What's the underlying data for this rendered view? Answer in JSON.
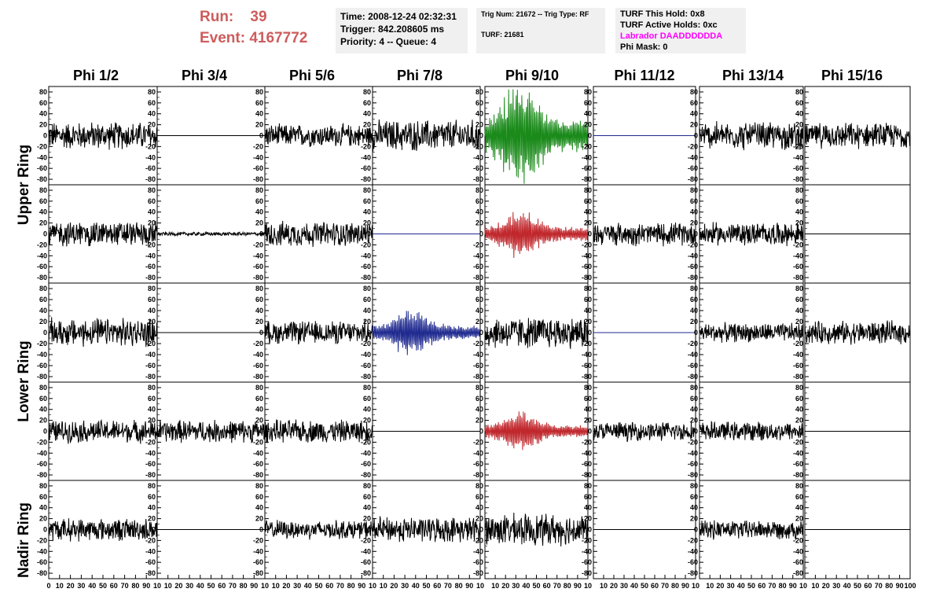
{
  "header": {
    "run_label": "Run:",
    "run_value": "39",
    "event_label": "Event:",
    "event_value": "4167772",
    "info1": {
      "time": "Time: 2008-12-24 02:32:31",
      "trigger": "Trigger: 842.208605 ms",
      "priority": "Priority: 4 -- Queue: 4"
    },
    "info2": {
      "trig": "Trig Num: 21672 -- Trig Type: RF",
      "turf": "TURF: 21681"
    },
    "info3": {
      "this_hold": "TURF This Hold: 0x8",
      "active_holds": "TURF Active Holds: 0xc",
      "labrador": "Labrador DAADDDDDDA",
      "phi_mask": "Phi Mask: 0"
    }
  },
  "phi_headers": [
    "Phi 1/2",
    "Phi 3/4",
    "Phi 5/6",
    "Phi 7/8",
    "Phi 9/10",
    "Phi 11/12",
    "Phi 13/14",
    "Phi 15/16"
  ],
  "ring_labels": [
    "Upper Ring",
    "Lower Ring",
    "Nadir Ring"
  ],
  "colors": {
    "run_text": "#cd5c5c",
    "black_trace": "#000000",
    "green_trace": "#1a8a1a",
    "red_trace": "#c0282d",
    "blue_trace": "#1f2a8f",
    "magenta_text": "#ff00ff"
  },
  "chart_data": {
    "type": "line",
    "rows": 5,
    "cols": 8,
    "y_ticks": [
      80,
      60,
      40,
      20,
      0,
      -20,
      -40,
      -60,
      -80
    ],
    "ylim": [
      -90,
      90
    ],
    "xlim": [
      0,
      100
    ],
    "x_tick_labels_first": [
      "0",
      "10",
      "20",
      "30",
      "40",
      "50",
      "60",
      "70",
      "80",
      "90",
      "10"
    ],
    "x_tick_labels_middle": [
      "10",
      "20",
      "30",
      "40",
      "50",
      "60",
      "70",
      "80",
      "90",
      "10"
    ],
    "x_tick_labels_last": [
      "10",
      "20",
      "30",
      "40",
      "50",
      "60",
      "70",
      "80",
      "90",
      "100"
    ],
    "panels": [
      [
        "noise",
        "flat",
        "noise",
        "noise",
        "pulse",
        "flat",
        "noise",
        "noise"
      ],
      [
        "noise",
        "small",
        "noise",
        "flat",
        "pulse",
        "noise",
        "noise",
        "flat"
      ],
      [
        "noise",
        "flat",
        "noise",
        "pulse",
        "noise",
        "flat",
        "noise",
        "noise"
      ],
      [
        "noise",
        "noise",
        "noise",
        "flat",
        "pulse",
        "noise",
        "noise",
        "flat"
      ],
      [
        "noise",
        "flat",
        "noise",
        "noise",
        "noise",
        "flat",
        "noise",
        "flat"
      ]
    ],
    "trace_colors": [
      [
        "black",
        "black",
        "black",
        "black",
        "green",
        "blue",
        "black",
        "black"
      ],
      [
        "black",
        "black",
        "black",
        "blue",
        "red",
        "black",
        "black",
        "black"
      ],
      [
        "black",
        "black",
        "black",
        "blue",
        "black",
        "blue",
        "black",
        "black"
      ],
      [
        "black",
        "black",
        "black",
        "black",
        "red",
        "black",
        "black",
        "black"
      ],
      [
        "black",
        "black",
        "black",
        "black",
        "black",
        "black",
        "black",
        "black"
      ]
    ],
    "amplitudes": [
      [
        22,
        0,
        18,
        25,
        80,
        0,
        22,
        20
      ],
      [
        20,
        3,
        20,
        0,
        35,
        18,
        18,
        0
      ],
      [
        22,
        0,
        18,
        35,
        25,
        0,
        15,
        18
      ],
      [
        18,
        18,
        18,
        0,
        30,
        15,
        15,
        0
      ],
      [
        18,
        0,
        15,
        20,
        25,
        0,
        15,
        0
      ]
    ]
  }
}
